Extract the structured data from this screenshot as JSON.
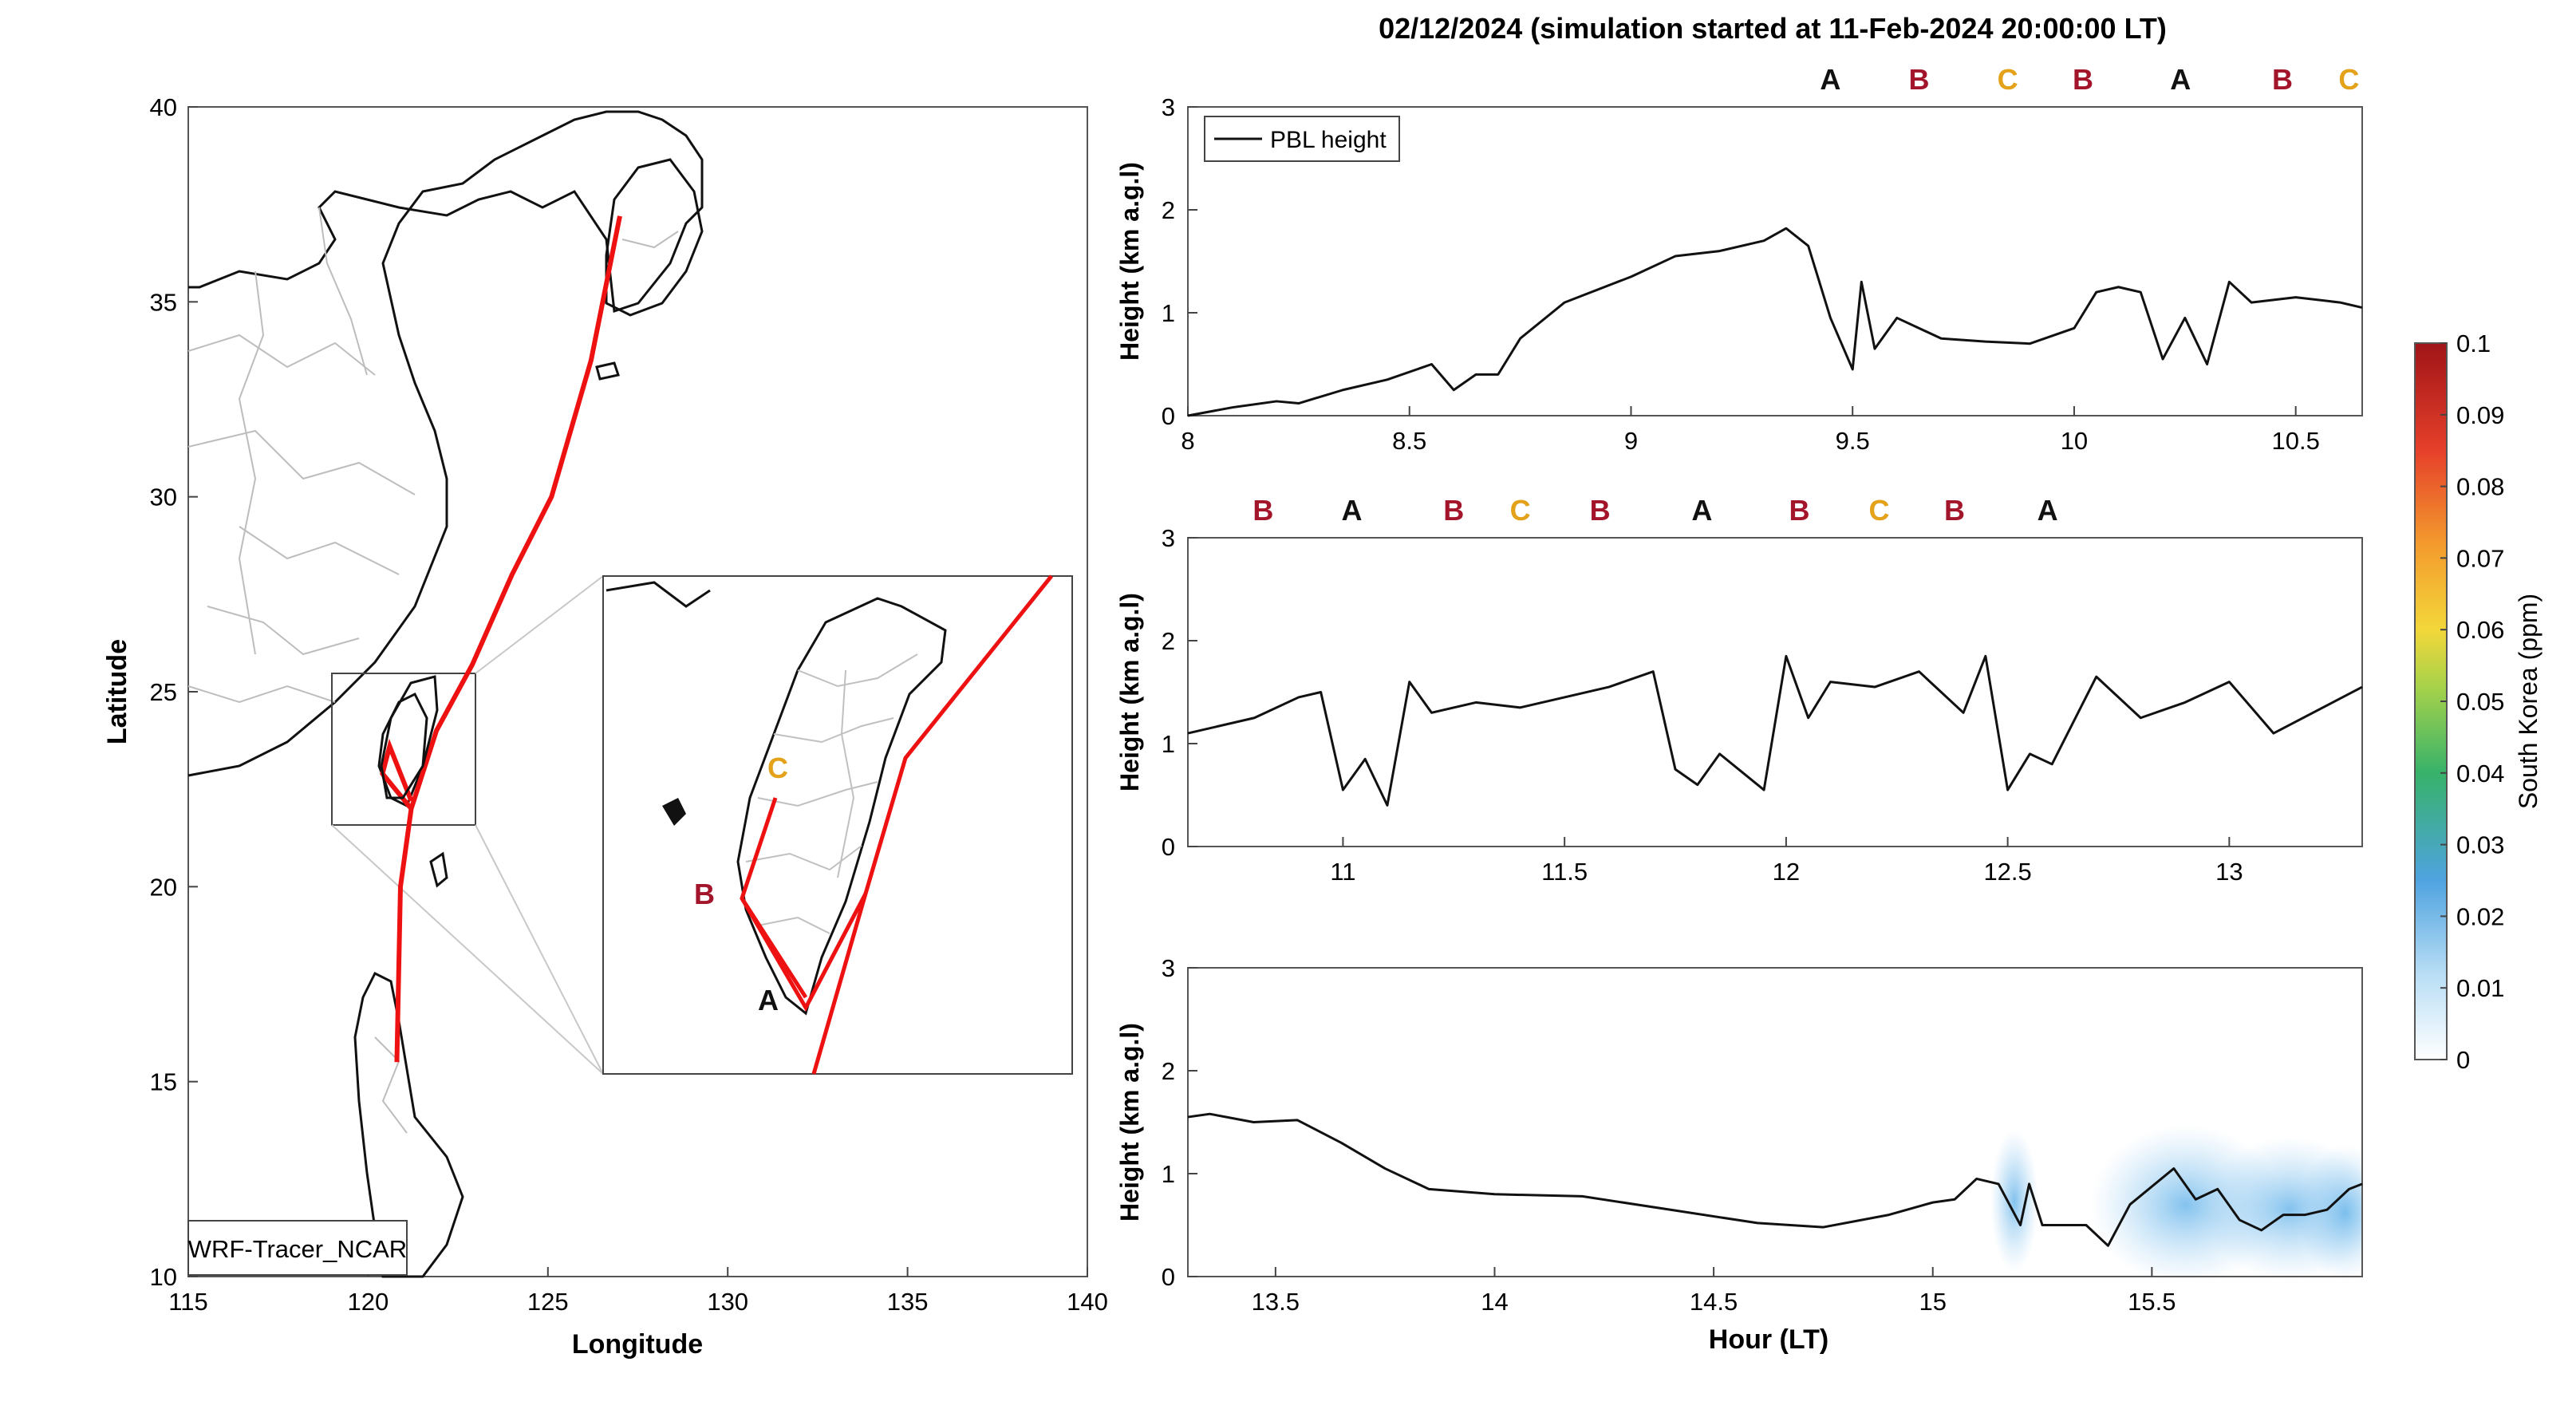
{
  "colors": {
    "track": "#ee1111",
    "label_A": "#111111",
    "label_B": "#a3152a",
    "label_C": "#e3a21a",
    "coast": "#111111",
    "borders": "#b8b8b8",
    "pbl": "#111111"
  },
  "icons": [
    "colorbar-gradient"
  ],
  "chart_data": [
    {
      "type": "map",
      "xlabel": "Longitude",
      "ylabel": "Latitude",
      "xlim": [
        115,
        140
      ],
      "ylim": [
        10,
        40
      ],
      "xticks": [
        "115",
        "120",
        "125",
        "130",
        "135",
        "140"
      ],
      "yticks": [
        "10",
        "15",
        "20",
        "25",
        "30",
        "35",
        "40"
      ],
      "model_label": "WRF-Tracer_NCAR",
      "track": [
        {
          "lon": 127.0,
          "lat": 37.2
        },
        {
          "lon": 126.2,
          "lat": 33.5
        },
        {
          "lon": 125.1,
          "lat": 30.0
        },
        {
          "lon": 124.0,
          "lat": 28.0
        },
        {
          "lon": 122.9,
          "lat": 25.7
        },
        {
          "lon": 121.9,
          "lat": 24.0
        },
        {
          "lon": 121.2,
          "lat": 22.0
        },
        {
          "lon": 120.9,
          "lat": 20.0
        },
        {
          "lon": 120.8,
          "lat": 15.5
        }
      ],
      "inset_labels": [
        "A",
        "B",
        "C"
      ]
    },
    {
      "type": "line",
      "title": "02/12/2024 (simulation started at 11-Feb-2024 20:00:00 LT)",
      "ylabel": "Height (km a.g.l)",
      "legend": "PBL height",
      "legend_position": "top-left",
      "xlim": [
        8,
        10.65
      ],
      "ylim": [
        0,
        3
      ],
      "xticks": [
        "8",
        "8.5",
        "9",
        "9.5",
        "10",
        "10.5"
      ],
      "yticks": [
        "0",
        "1",
        "2",
        "3"
      ],
      "top_labels": [
        {
          "x": 9.45,
          "label": "A"
        },
        {
          "x": 9.65,
          "label": "B"
        },
        {
          "x": 9.85,
          "label": "C"
        },
        {
          "x": 10.02,
          "label": "B"
        },
        {
          "x": 10.24,
          "label": "A"
        },
        {
          "x": 10.47,
          "label": "B"
        },
        {
          "x": 10.62,
          "label": "C"
        }
      ],
      "x": [
        8.0,
        8.1,
        8.2,
        8.25,
        8.35,
        8.45,
        8.55,
        8.6,
        8.65,
        8.7,
        8.75,
        8.85,
        9.0,
        9.1,
        9.2,
        9.3,
        9.35,
        9.4,
        9.45,
        9.5,
        9.52,
        9.55,
        9.6,
        9.7,
        9.8,
        9.9,
        10.0,
        10.05,
        10.1,
        10.15,
        10.2,
        10.25,
        10.3,
        10.35,
        10.4,
        10.5,
        10.6,
        10.65
      ],
      "y": [
        0.0,
        0.08,
        0.14,
        0.12,
        0.25,
        0.35,
        0.5,
        0.25,
        0.4,
        0.4,
        0.75,
        1.1,
        1.35,
        1.55,
        1.6,
        1.7,
        1.82,
        1.65,
        0.95,
        0.45,
        1.3,
        0.65,
        0.95,
        0.75,
        0.72,
        0.7,
        0.85,
        1.2,
        1.25,
        1.2,
        0.55,
        0.95,
        0.5,
        1.3,
        1.1,
        1.15,
        1.1,
        1.05
      ]
    },
    {
      "type": "line",
      "ylabel": "Height (km a.g.l)",
      "xlim": [
        10.65,
        13.3
      ],
      "ylim": [
        0,
        3
      ],
      "xticks": [
        "11",
        "11.5",
        "12",
        "12.5",
        "13"
      ],
      "yticks": [
        "0",
        "1",
        "2",
        "3"
      ],
      "top_labels": [
        {
          "x": 10.82,
          "label": "B"
        },
        {
          "x": 11.02,
          "label": "A"
        },
        {
          "x": 11.25,
          "label": "B"
        },
        {
          "x": 11.4,
          "label": "C"
        },
        {
          "x": 11.58,
          "label": "B"
        },
        {
          "x": 11.81,
          "label": "A"
        },
        {
          "x": 12.03,
          "label": "B"
        },
        {
          "x": 12.21,
          "label": "C"
        },
        {
          "x": 12.38,
          "label": "B"
        },
        {
          "x": 12.59,
          "label": "A"
        }
      ],
      "x": [
        10.65,
        10.8,
        10.9,
        10.95,
        11.0,
        11.05,
        11.1,
        11.15,
        11.2,
        11.3,
        11.4,
        11.5,
        11.6,
        11.7,
        11.75,
        11.8,
        11.85,
        11.95,
        12.0,
        12.05,
        12.1,
        12.2,
        12.3,
        12.4,
        12.45,
        12.5,
        12.55,
        12.6,
        12.7,
        12.8,
        12.9,
        13.0,
        13.1,
        13.3
      ],
      "y": [
        1.1,
        1.25,
        1.45,
        1.5,
        0.55,
        0.85,
        0.4,
        1.6,
        1.3,
        1.4,
        1.35,
        1.45,
        1.55,
        1.7,
        0.75,
        0.6,
        0.9,
        0.55,
        1.85,
        1.25,
        1.6,
        1.55,
        1.7,
        1.3,
        1.85,
        0.55,
        0.9,
        0.8,
        1.65,
        1.25,
        1.4,
        1.6,
        1.1,
        1.55
      ]
    },
    {
      "type": "line",
      "xlabel": "Hour (LT)",
      "ylabel": "Height (km a.g.l)",
      "xlim": [
        13.3,
        15.98
      ],
      "ylim": [
        0,
        3
      ],
      "xticks": [
        "13.5",
        "14",
        "14.5",
        "15",
        "15.5"
      ],
      "yticks": [
        "0",
        "1",
        "2",
        "3"
      ],
      "x": [
        13.3,
        13.35,
        13.45,
        13.55,
        13.65,
        13.75,
        13.85,
        14.0,
        14.2,
        14.4,
        14.6,
        14.75,
        14.9,
        15.0,
        15.05,
        15.1,
        15.15,
        15.2,
        15.22,
        15.25,
        15.35,
        15.4,
        15.45,
        15.55,
        15.6,
        15.65,
        15.7,
        15.75,
        15.8,
        15.85,
        15.9,
        15.95,
        15.98
      ],
      "y": [
        1.55,
        1.58,
        1.5,
        1.52,
        1.3,
        1.05,
        0.85,
        0.8,
        0.78,
        0.65,
        0.52,
        0.48,
        0.6,
        0.72,
        0.75,
        0.95,
        0.9,
        0.5,
        0.9,
        0.5,
        0.5,
        0.3,
        0.7,
        1.05,
        0.75,
        0.85,
        0.55,
        0.45,
        0.6,
        0.6,
        0.65,
        0.85,
        0.9
      ],
      "colorbar": {
        "label": "South Korea (ppm)",
        "range": [
          0,
          0.1
        ],
        "ticks": [
          "0",
          "0.01",
          "0.02",
          "0.03",
          "0.04",
          "0.05",
          "0.06",
          "0.07",
          "0.08",
          "0.09",
          "0.1"
        ]
      }
    }
  ]
}
